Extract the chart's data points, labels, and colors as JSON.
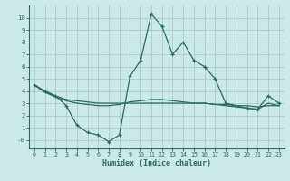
{
  "xlabel": "Humidex (Indice chaleur)",
  "ylabel": "",
  "background_color": "#cde8e8",
  "grid_color": "#aacccc",
  "line_color": "#2a6b62",
  "xlim": [
    -0.5,
    23.5
  ],
  "ylim": [
    -0.7,
    11.0
  ],
  "yticks": [
    0,
    1,
    2,
    3,
    4,
    5,
    6,
    7,
    8,
    9,
    10
  ],
  "ytick_labels": [
    "-0",
    "1",
    "2",
    "3",
    "4",
    "5",
    "6",
    "7",
    "8",
    "9",
    "10"
  ],
  "xticks": [
    0,
    1,
    2,
    3,
    4,
    5,
    6,
    7,
    8,
    9,
    10,
    11,
    12,
    13,
    14,
    15,
    16,
    17,
    18,
    19,
    20,
    21,
    22,
    23
  ],
  "line1_x": [
    0,
    1,
    2,
    3,
    4,
    5,
    6,
    7,
    8,
    9,
    10,
    11,
    12,
    13,
    14,
    15,
    16,
    17,
    18,
    19,
    20,
    21,
    22,
    23
  ],
  "line1_y": [
    4.5,
    3.9,
    3.6,
    3.3,
    3.2,
    3.1,
    3.0,
    3.0,
    3.0,
    3.0,
    3.0,
    3.0,
    3.0,
    3.0,
    3.0,
    3.0,
    3.0,
    2.9,
    2.9,
    2.8,
    2.8,
    2.7,
    2.8,
    2.8
  ],
  "line2_x": [
    0,
    1,
    2,
    3,
    4,
    5,
    6,
    7,
    8,
    9,
    10,
    11,
    12,
    13,
    14,
    15,
    16,
    17,
    18,
    19,
    20,
    21,
    22,
    23
  ],
  "line2_y": [
    4.5,
    4.0,
    3.6,
    2.8,
    1.2,
    0.6,
    0.4,
    -0.15,
    0.4,
    5.2,
    6.5,
    10.3,
    9.3,
    7.0,
    8.0,
    6.5,
    6.0,
    5.0,
    3.0,
    2.8,
    2.6,
    2.5,
    3.6,
    3.0
  ],
  "line3_x": [
    0,
    1,
    2,
    3,
    4,
    5,
    6,
    7,
    8,
    9,
    10,
    11,
    12,
    13,
    14,
    15,
    16,
    17,
    18,
    19,
    20,
    21,
    22,
    23
  ],
  "line3_y": [
    4.5,
    3.9,
    3.5,
    3.2,
    3.0,
    2.9,
    2.8,
    2.8,
    2.9,
    3.1,
    3.2,
    3.3,
    3.3,
    3.2,
    3.1,
    3.0,
    3.0,
    2.9,
    2.8,
    2.7,
    2.6,
    2.5,
    3.0,
    2.8
  ]
}
